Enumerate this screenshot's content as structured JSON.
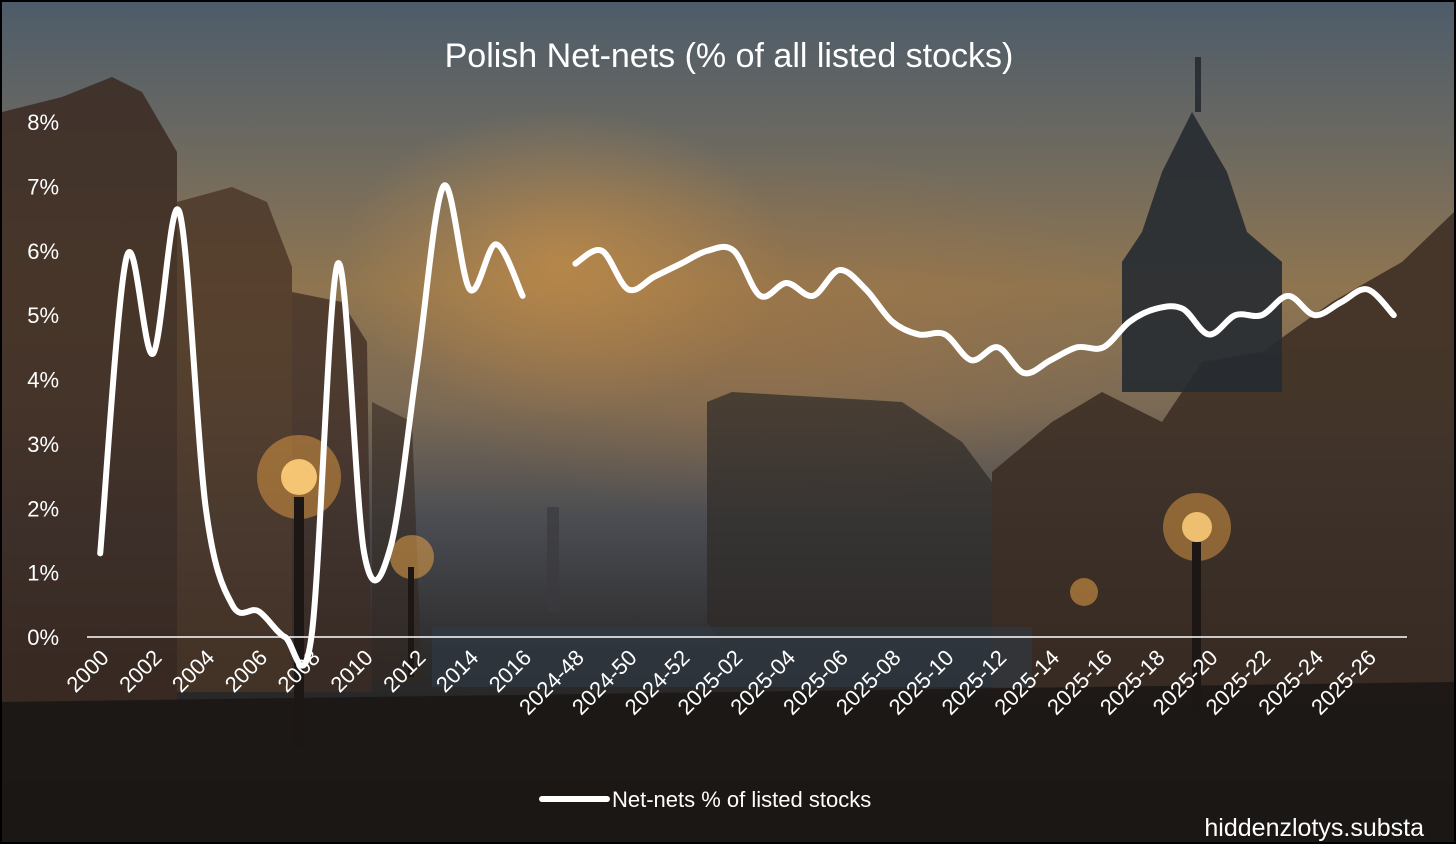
{
  "chart_data": {
    "type": "line",
    "title": "Polish Net-nets (% of all listed stocks)",
    "y_ticks": [
      "8%",
      "7%",
      "6%",
      "5%",
      "4%",
      "3%",
      "2%",
      "1%",
      "0%"
    ],
    "ylim": [
      0,
      8
    ],
    "grid": false,
    "legend_position": "bottom-center",
    "x_labels_annual": [
      "2000",
      "2002",
      "2004",
      "2006",
      "2008",
      "2010",
      "2012",
      "2014",
      "2016"
    ],
    "x_labels_weekly": [
      "2024-48",
      "2024-50",
      "2024-52",
      "2025-02",
      "2025-04",
      "2025-06",
      "2025-08",
      "2025-10",
      "2025-12",
      "2025-14",
      "2025-16",
      "2025-18",
      "2025-20",
      "2025-22",
      "2025-24",
      "2025-26"
    ],
    "series": [
      {
        "name": "Net-nets % of listed stocks",
        "color": "#ffffff",
        "segments": [
          {
            "x": [
              "2000",
              "2001",
              "2002",
              "2003",
              "2004",
              "2005",
              "2006",
              "2007",
              "2008",
              "2009",
              "2010",
              "2011",
              "2012",
              "2013",
              "2014",
              "2015",
              "2016"
            ],
            "y": [
              1.3,
              5.9,
              4.4,
              6.6,
              2.0,
              0.5,
              0.4,
              0.0,
              0.0,
              5.8,
              1.3,
              1.4,
              4.2,
              7.0,
              5.4,
              6.1,
              5.3
            ]
          },
          {
            "x": [
              "2024-48",
              "2024-49",
              "2024-50",
              "2024-51",
              "2024-52",
              "2025-01",
              "2025-02",
              "2025-03",
              "2025-04",
              "2025-05",
              "2025-06",
              "2025-07",
              "2025-08",
              "2025-09",
              "2025-10",
              "2025-11",
              "2025-12",
              "2025-13",
              "2025-14",
              "2025-15",
              "2025-16",
              "2025-17",
              "2025-18",
              "2025-19",
              "2025-20",
              "2025-21",
              "2025-22",
              "2025-23",
              "2025-24",
              "2025-25",
              "2025-26",
              "2025-27"
            ],
            "y": [
              5.8,
              6.0,
              5.4,
              5.6,
              5.8,
              6.0,
              6.0,
              5.3,
              5.5,
              5.3,
              5.7,
              5.4,
              4.9,
              4.7,
              4.7,
              4.3,
              4.5,
              4.1,
              4.3,
              4.5,
              4.5,
              4.9,
              5.1,
              5.1,
              4.7,
              5.0,
              5.0,
              5.3,
              5.0,
              5.2,
              5.4,
              5.0
            ]
          }
        ]
      }
    ]
  },
  "legend": {
    "label": "Net-nets % of listed stocks"
  },
  "credit": "hiddenzlotys.substa"
}
